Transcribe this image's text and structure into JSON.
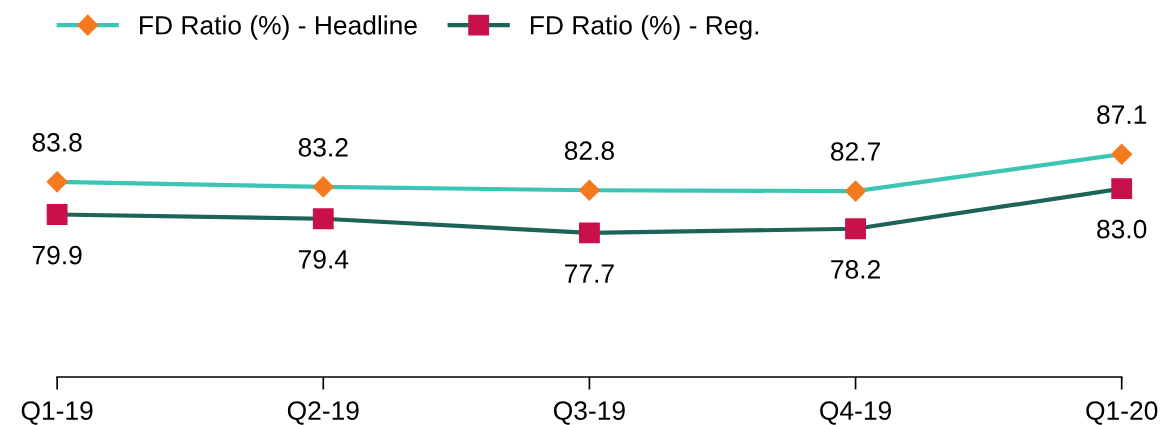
{
  "chart_data": {
    "type": "line",
    "categories": [
      "Q1-19",
      "Q2-19",
      "Q3-19",
      "Q4-19",
      "Q1-20"
    ],
    "series": [
      {
        "name": "FD Ratio (%) - Headline",
        "color": "#3cc4b4",
        "colors": [
          "#f47a20",
          "#f47a20",
          "#f47a20",
          "#f47a20",
          "#f47a20"
        ],
        "marker": "diamond",
        "values": [
          83.8,
          83.2,
          82.8,
          82.7,
          87.1
        ],
        "value_labels": [
          "83.8",
          "83.2",
          "82.8",
          "82.7",
          "87.1"
        ]
      },
      {
        "name": "FD Ratio (%) - Reg.",
        "color": "#1e6456",
        "colors": [
          "#c8104a",
          "#c8104a",
          "#c8104a",
          "#c8104a",
          "#c8104a"
        ],
        "marker": "square",
        "values": [
          79.9,
          79.4,
          77.7,
          78.2,
          83.0
        ],
        "value_labels": [
          "79.9",
          "79.4",
          "77.7",
          "78.2",
          "83.0"
        ]
      }
    ],
    "legend": "top left",
    "grid": false,
    "line_style": "solid"
  }
}
